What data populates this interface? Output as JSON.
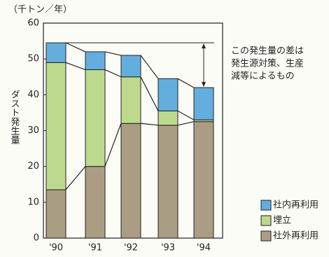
{
  "chart_data": {
    "type": "stacked-bar",
    "unit_label": "（千トン／年）",
    "y_label": "ダスト発生量",
    "categories": [
      "'90",
      "'91",
      "'92",
      "'93",
      "'94"
    ],
    "series": [
      {
        "name": "社外再利用",
        "color": "#ab9d83",
        "values": [
          13.5,
          20,
          32,
          31.5,
          32.5
        ]
      },
      {
        "name": "埋立",
        "color": "#bcd98e",
        "values": [
          35.5,
          27,
          13,
          4,
          0.5
        ]
      },
      {
        "name": "社内再利用",
        "color": "#64aede",
        "values": [
          5.5,
          5,
          6,
          9,
          9
        ]
      }
    ],
    "ylim": [
      0,
      60
    ],
    "yticks": [
      0,
      10,
      20,
      30,
      40,
      50,
      60
    ],
    "annotation": [
      "この発生量の差は",
      "発生源対策、生産",
      "減等によるもの"
    ]
  }
}
